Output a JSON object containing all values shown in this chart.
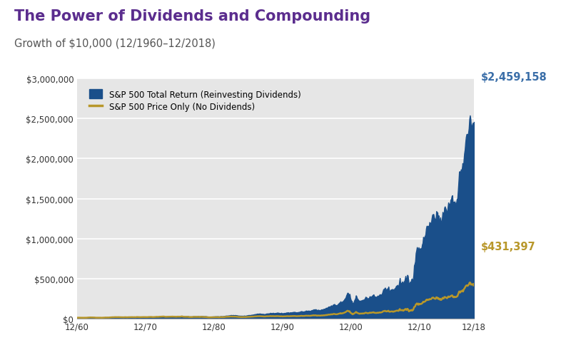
{
  "title": "The Power of Dividends and Compounding",
  "subtitle": "Growth of $10,000 (12/1960–12/2018)",
  "title_color": "#5b2d8e",
  "subtitle_color": "#555555",
  "title_fontsize": 15,
  "subtitle_fontsize": 10.5,
  "fill_color": "#1a4f8a",
  "line_color": "#b8972a",
  "annotation_color_blue": "#3a6ea8",
  "annotation_color_gold": "#b8972a",
  "annotation_value_blue": "$2,459,158",
  "annotation_value_gold": "$431,397",
  "final_total": 2459158,
  "final_price": 431397,
  "initial": 10000,
  "ylabel_max": 3000000,
  "ytick_values": [
    0,
    500000,
    1000000,
    1500000,
    2000000,
    2500000,
    3000000
  ],
  "ytick_labels": [
    "$0",
    "$500,000",
    "$1,000,000",
    "$1,500,000",
    "$2,000,000",
    "$2,500,000",
    "$3,000,000"
  ],
  "xtick_labels": [
    "12/60",
    "12/70",
    "12/80",
    "12/90",
    "12/00",
    "12/10",
    "12/18"
  ],
  "legend_label_blue": "S&P 500 Total Return (Reinvesting Dividends)",
  "legend_label_gold": "S&P 500 Price Only (No Dividends)",
  "plot_bg_color": "#e6e6e6",
  "outer_bg_color": "#ffffff",
  "grid_color": "#ffffff"
}
